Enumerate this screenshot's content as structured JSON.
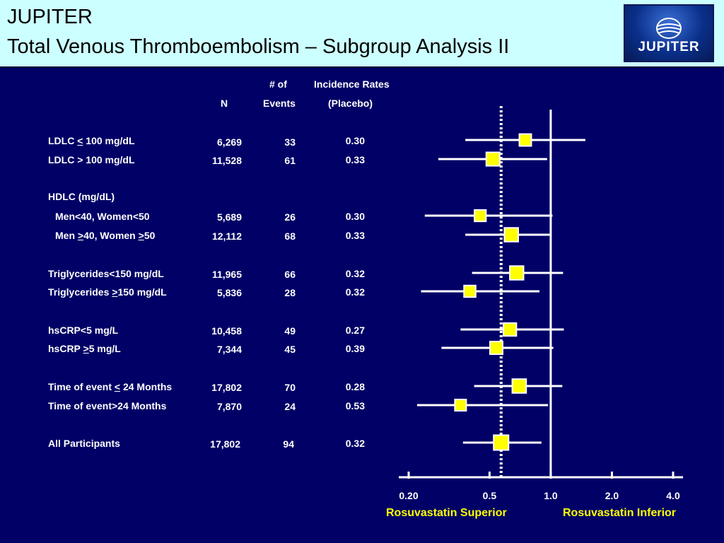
{
  "header": {
    "title_line1": "JUPITER",
    "title_line2": "Total Venous Thromboembolism – Subgroup Analysis II",
    "logo_text": "JUPITER"
  },
  "table_headers": {
    "n": "N",
    "events_line1": "# of",
    "events_line2": "Events",
    "rates_line1": "Incidence Rates",
    "rates_line2": "(Placebo)"
  },
  "groups": [
    {
      "heading": "HDLC (mg/dL)"
    }
  ],
  "rows": [
    {
      "label_parts": [
        "LDLC ",
        "<",
        " 100 mg/dL"
      ],
      "n": "6,269",
      "events": "33",
      "rate": "0.30"
    },
    {
      "label_parts": [
        "LDLC > 100 mg/dL"
      ],
      "n": "11,528",
      "events": "61",
      "rate": "0.33"
    },
    {
      "label_parts": [
        "Men<40, Women<50"
      ],
      "n": "5,689",
      "events": "26",
      "rate": "0.30"
    },
    {
      "label_parts": [
        "Men ",
        ">",
        "40, Women ",
        ">",
        "50"
      ],
      "n": "12,112",
      "events": "68",
      "rate": "0.33"
    },
    {
      "label_parts": [
        "Triglycerides<150 mg/dL"
      ],
      "n": "11,965",
      "events": "66",
      "rate": "0.32"
    },
    {
      "label_parts": [
        "Triglycerides ",
        ">",
        "150 mg/dL"
      ],
      "n": "5,836",
      "events": "28",
      "rate": "0.32"
    },
    {
      "label_parts": [
        "hsCRP<5 mg/L"
      ],
      "n": "10,458",
      "events": "49",
      "rate": "0.27"
    },
    {
      "label_parts": [
        "hsCRP ",
        ">",
        "5 mg/L"
      ],
      "n": "7,344",
      "events": "45",
      "rate": "0.39"
    },
    {
      "label_parts": [
        "Time of event ",
        "<",
        " 24 Months"
      ],
      "n": "17,802",
      "events": "70",
      "rate": "0.28"
    },
    {
      "label_parts": [
        "Time of event>24 Months"
      ],
      "n": "7,870",
      "events": "24",
      "rate": "0.53"
    },
    {
      "label_parts": [
        "All Participants"
      ],
      "n": "17,802",
      "events": "94",
      "rate": "0.32"
    }
  ],
  "axis_notes": {
    "left": "Rosuvastatin Superior",
    "right": "Rosuvastatin Inferior"
  },
  "colors": {
    "background": "#000066",
    "header_bg": "#ccffff",
    "marker": "#ffff00",
    "text": "#ffffff",
    "note": "#ffff00"
  },
  "chart_data": {
    "type": "scatter",
    "subtype": "forest-plot",
    "x_scale": "log",
    "xlim": [
      0.2,
      4.0
    ],
    "x_ticks": [
      0.2,
      0.5,
      1.0,
      2.0,
      4.0
    ],
    "x_tick_labels": [
      "0.20",
      "0.5",
      "1.0",
      "2.0",
      "4.0"
    ],
    "reference_line": 1.0,
    "overall_estimate_line": 0.57,
    "categories": [
      "LDLC < 100 mg/dL",
      "LDLC > 100 mg/dL",
      "Men<40, Women<50",
      "Men >40, Women >50",
      "Triglycerides<150 mg/dL",
      "Triglycerides >150 mg/dL",
      "hsCRP<5 mg/L",
      "hsCRP >5 mg/L",
      "Time of event < 24 Months",
      "Time of event>24 Months",
      "All Participants"
    ],
    "estimate": [
      0.75,
      0.52,
      0.45,
      0.64,
      0.68,
      0.4,
      0.63,
      0.54,
      0.7,
      0.36,
      0.57
    ],
    "ci_low": [
      0.38,
      0.28,
      0.24,
      0.38,
      0.41,
      0.23,
      0.36,
      0.29,
      0.42,
      0.22,
      0.37
    ],
    "ci_high": [
      1.48,
      0.96,
      1.02,
      1.01,
      1.15,
      0.88,
      1.16,
      1.03,
      1.14,
      0.97,
      0.9
    ],
    "marker_weight": [
      33,
      61,
      26,
      68,
      66,
      28,
      49,
      45,
      70,
      24,
      94
    ]
  }
}
